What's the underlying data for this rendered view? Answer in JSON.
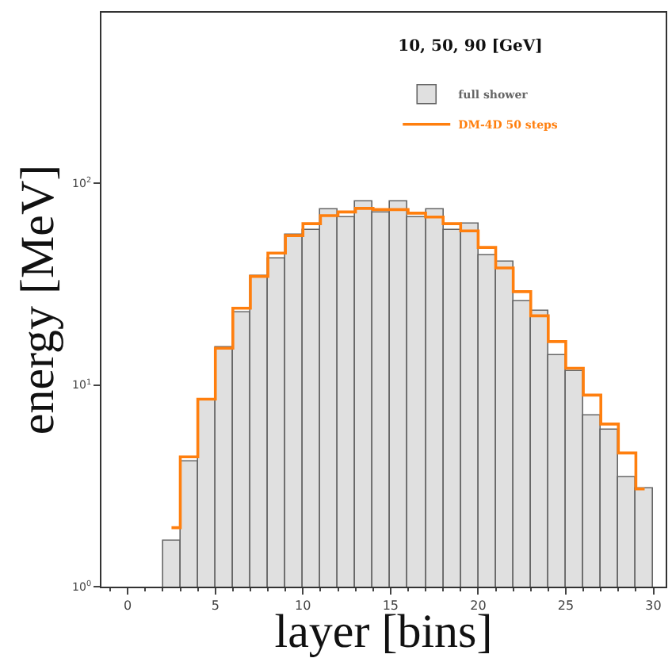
{
  "chart_data": {
    "type": "bar",
    "xlabel": "layer [bins]",
    "ylabel": "energy [MeV]",
    "legend_title": "10, 50, 90 [GeV]",
    "x": [
      2.5,
      3.5,
      4.5,
      5.5,
      6.5,
      7.5,
      8.5,
      9.5,
      10.5,
      11.5,
      12.5,
      13.5,
      14.5,
      15.5,
      16.5,
      17.5,
      18.5,
      19.5,
      20.5,
      21.5,
      22.5,
      23.5,
      24.5,
      25.5,
      26.5,
      27.5,
      28.5,
      29.5
    ],
    "series": [
      {
        "name": "full shower",
        "color": "#666666",
        "values": [
          1.7,
          4.15,
          8.5,
          15.5,
          23,
          34.5,
          42,
          56,
          59,
          74,
          68,
          81,
          72,
          81,
          68,
          74,
          59,
          63,
          44,
          41,
          26,
          23.3,
          14,
          11.8,
          7,
          6,
          3.5,
          3.05
        ]
      },
      {
        "name": "DM-4D 50 steps",
        "type": "step",
        "color": "#ff7f0e",
        "values": [
          1.96,
          4.4,
          8.5,
          15.2,
          24,
          34.5,
          45,
          55,
          63,
          69,
          72,
          75,
          74,
          74,
          71,
          68,
          63,
          58,
          48,
          38,
          29,
          22,
          16.4,
          12.1,
          8.9,
          6.4,
          4.6,
          3.05
        ]
      }
    ],
    "log": true,
    "legend": "top right",
    "xlim": [
      -1.5,
      30.7
    ],
    "xticks": [
      0,
      5,
      10,
      15,
      20,
      25,
      30
    ],
    "ylim": [
      1,
      700
    ],
    "yticks": [
      {
        "value": 1,
        "label": "10$^{0}$"
      },
      {
        "value": 10,
        "label": "10$^{1}$"
      },
      {
        "value": 100,
        "label": "10$^{2}$"
      }
    ]
  }
}
